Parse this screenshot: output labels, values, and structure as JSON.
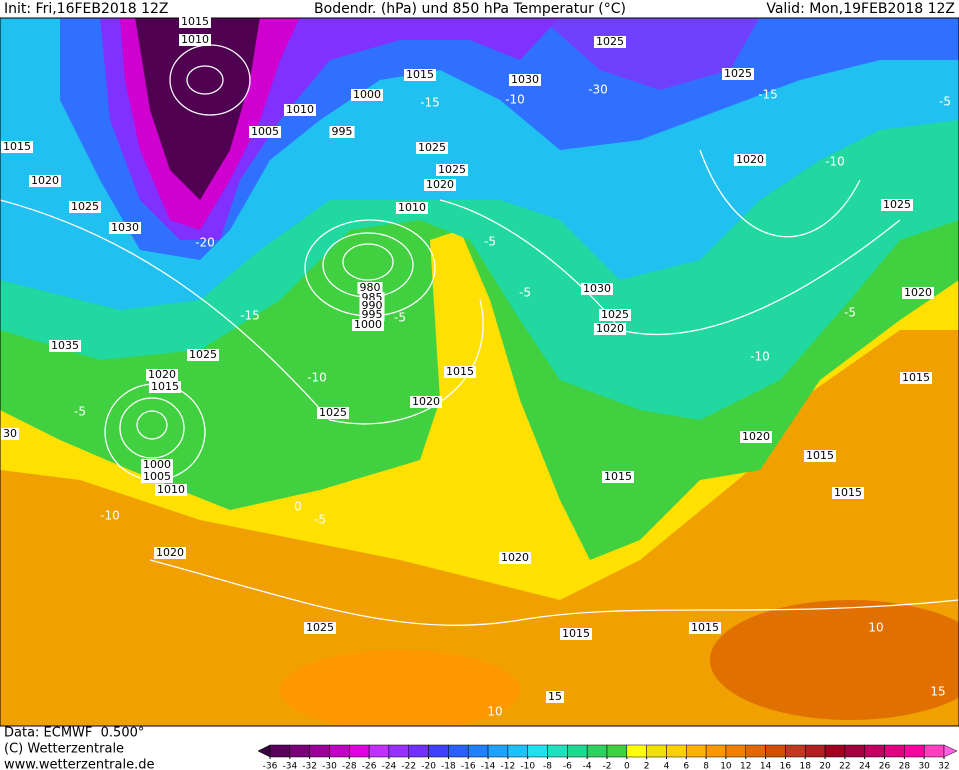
{
  "header": {
    "init": "Init: Fri,16FEB2018 12Z",
    "title": "Bodendr. (hPa) und 850 hPa Temperatur (°C)",
    "valid": "Valid: Mon,19FEB2018 12Z"
  },
  "footer": {
    "data": "Data: ECMWF  0.500°",
    "copyright": "(C) Wetterzentrale",
    "url": "www.wetterzentrale.de"
  },
  "map": {
    "isobar_labels": [
      1015,
      1010,
      1015,
      1030,
      1025,
      1025,
      1010,
      1000,
      1005,
      995,
      1015,
      1025,
      1025,
      1020,
      1020,
      1020,
      1025,
      1010,
      1025,
      1030,
      980,
      985,
      990,
      995,
      1000,
      1030,
      1020,
      1025,
      1020,
      1035,
      1025,
      1020,
      1015,
      1015,
      1015,
      1020,
      1025,
      1020,
      30,
      1000,
      1005,
      1010,
      1015,
      1015,
      1015,
      1020,
      1020,
      1025,
      1015,
      1015,
      15
    ],
    "temperature_labels": [
      -30,
      -10,
      -15,
      -15,
      -5,
      -10,
      -5,
      -15,
      -5,
      -10,
      -5,
      -10,
      0,
      -5,
      -5,
      -5,
      -10,
      -20,
      10,
      15,
      10
    ]
  },
  "colorbar": {
    "ticks": [
      -36,
      -34,
      -32,
      -30,
      -28,
      -26,
      -24,
      -22,
      -20,
      -18,
      -16,
      -14,
      -12,
      -10,
      -8,
      -6,
      -4,
      -2,
      0,
      2,
      4,
      6,
      8,
      10,
      12,
      14,
      16,
      18,
      20,
      22,
      24,
      26,
      28,
      30,
      32
    ],
    "colors": [
      "#3a0040",
      "#5a005a",
      "#7a007a",
      "#9a009a",
      "#c000c0",
      "#e000e0",
      "#c030ff",
      "#9a30ff",
      "#7030ff",
      "#4040ff",
      "#2a60ff",
      "#2080ff",
      "#20a0ff",
      "#20c0ff",
      "#20e0f0",
      "#20e0c0",
      "#20d890",
      "#30d060",
      "#40d040",
      "#ffff00",
      "#f0e000",
      "#ffd000",
      "#ffb000",
      "#ff9800",
      "#f08000",
      "#e06800",
      "#d05000",
      "#c03820",
      "#b02020",
      "#a00020",
      "#a00040",
      "#c00060",
      "#e00080",
      "#ff00a0",
      "#ff40c0",
      "#ff60e0"
    ]
  }
}
